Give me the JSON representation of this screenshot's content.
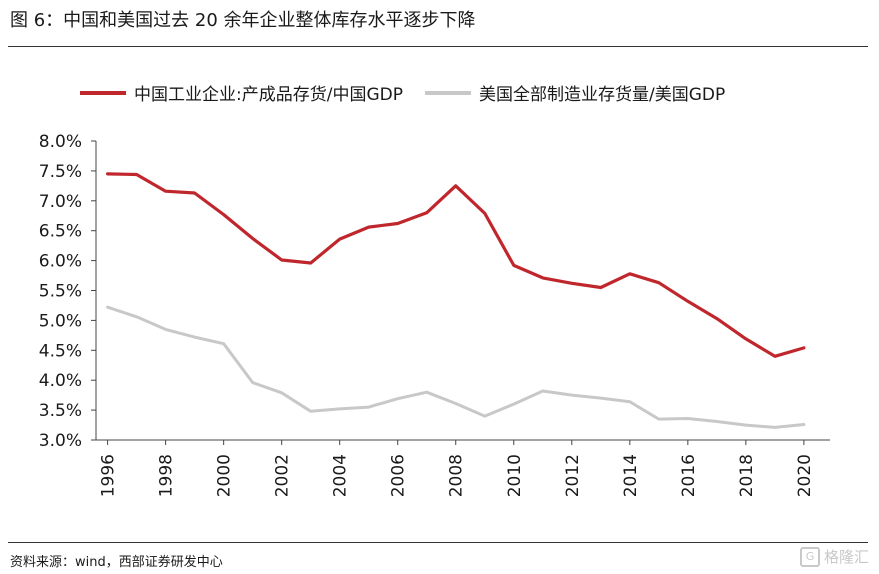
{
  "figure": {
    "title": "图 6：中国和美国过去 20 余年企业整体库存水平逐步下降",
    "source": "资料来源：wind，西部证券研发中心",
    "watermark": "格隆汇",
    "watermark_icon": "g-logo-icon"
  },
  "chart_data": {
    "type": "line",
    "ylim": [
      3.0,
      8.0
    ],
    "yticks": [
      "3.0%",
      "3.5%",
      "4.0%",
      "4.5%",
      "5.0%",
      "5.5%",
      "6.0%",
      "6.5%",
      "7.0%",
      "7.5%",
      "8.0%"
    ],
    "ytick_values": [
      3.0,
      3.5,
      4.0,
      4.5,
      5.0,
      5.5,
      6.0,
      6.5,
      7.0,
      7.5,
      8.0
    ],
    "xticks": [
      "1996",
      "1998",
      "2000",
      "2002",
      "2004",
      "2006",
      "2008",
      "2010",
      "2012",
      "2014",
      "2016",
      "2018",
      "2020"
    ],
    "xtick_values": [
      1996,
      1998,
      2000,
      2002,
      2004,
      2006,
      2008,
      2010,
      2012,
      2014,
      2016,
      2018,
      2020
    ],
    "xlim": [
      1995.6,
      2020.9
    ],
    "grid": false,
    "legend_position": "top",
    "series": [
      {
        "name": "中国工业企业:产成品存货/中国GDP",
        "color": "#c0272d",
        "x": [
          1996,
          1997,
          1998,
          1999,
          2000,
          2001,
          2002,
          2003,
          2004,
          2005,
          2006,
          2007,
          2008,
          2009,
          2010,
          2011,
          2012,
          2013,
          2014,
          2015,
          2016,
          2017,
          2018,
          2019,
          2020
        ],
        "values": [
          7.45,
          7.44,
          7.16,
          7.13,
          6.77,
          6.37,
          6.01,
          5.96,
          6.36,
          6.56,
          6.62,
          6.8,
          7.25,
          6.79,
          5.92,
          5.71,
          5.62,
          5.55,
          5.78,
          5.63,
          5.32,
          5.03,
          4.69,
          4.4,
          4.54
        ]
      },
      {
        "name": "美国全部制造业存货量/美国GDP",
        "color": "#c8c8c8",
        "x": [
          1996,
          1997,
          1998,
          1999,
          2000,
          2001,
          2002,
          2003,
          2004,
          2005,
          2006,
          2007,
          2008,
          2009,
          2010,
          2011,
          2012,
          2013,
          2014,
          2015,
          2016,
          2017,
          2018,
          2019,
          2020
        ],
        "values": [
          5.22,
          5.06,
          4.85,
          4.72,
          4.61,
          3.96,
          3.79,
          3.48,
          3.52,
          3.55,
          3.69,
          3.8,
          3.61,
          3.4,
          3.6,
          3.82,
          3.75,
          3.7,
          3.64,
          3.35,
          3.36,
          3.31,
          3.25,
          3.21,
          3.26
        ]
      }
    ]
  }
}
